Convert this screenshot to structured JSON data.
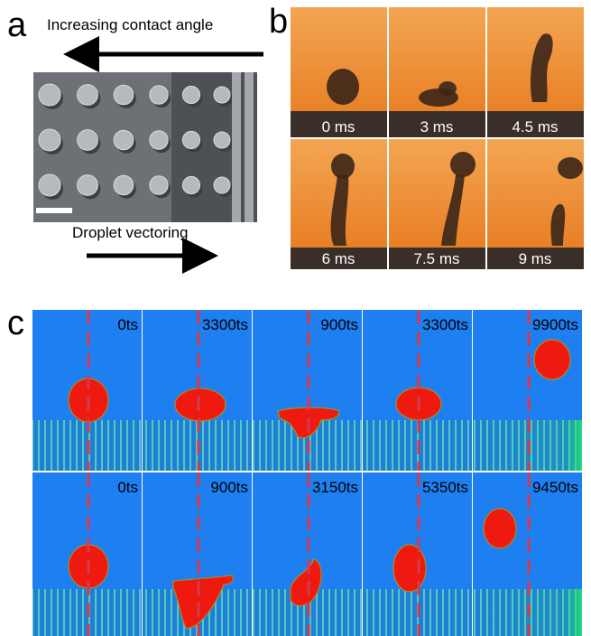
{
  "panel_a": {
    "label": "a",
    "top_text": "Increasing contact angle",
    "bottom_text": "Droplet vectoring"
  },
  "panel_b": {
    "label": "b",
    "frames": [
      "0 ms",
      "3 ms",
      "4.5 ms",
      "6 ms",
      "7.5 ms",
      "9 ms"
    ]
  },
  "panel_c": {
    "label": "c",
    "rows": [
      [
        "0ts",
        "3300ts",
        "900ts",
        "3300ts",
        "9900ts"
      ],
      [
        "0ts",
        "900ts",
        "3150ts",
        "5350ts",
        "9450ts"
      ]
    ]
  }
}
